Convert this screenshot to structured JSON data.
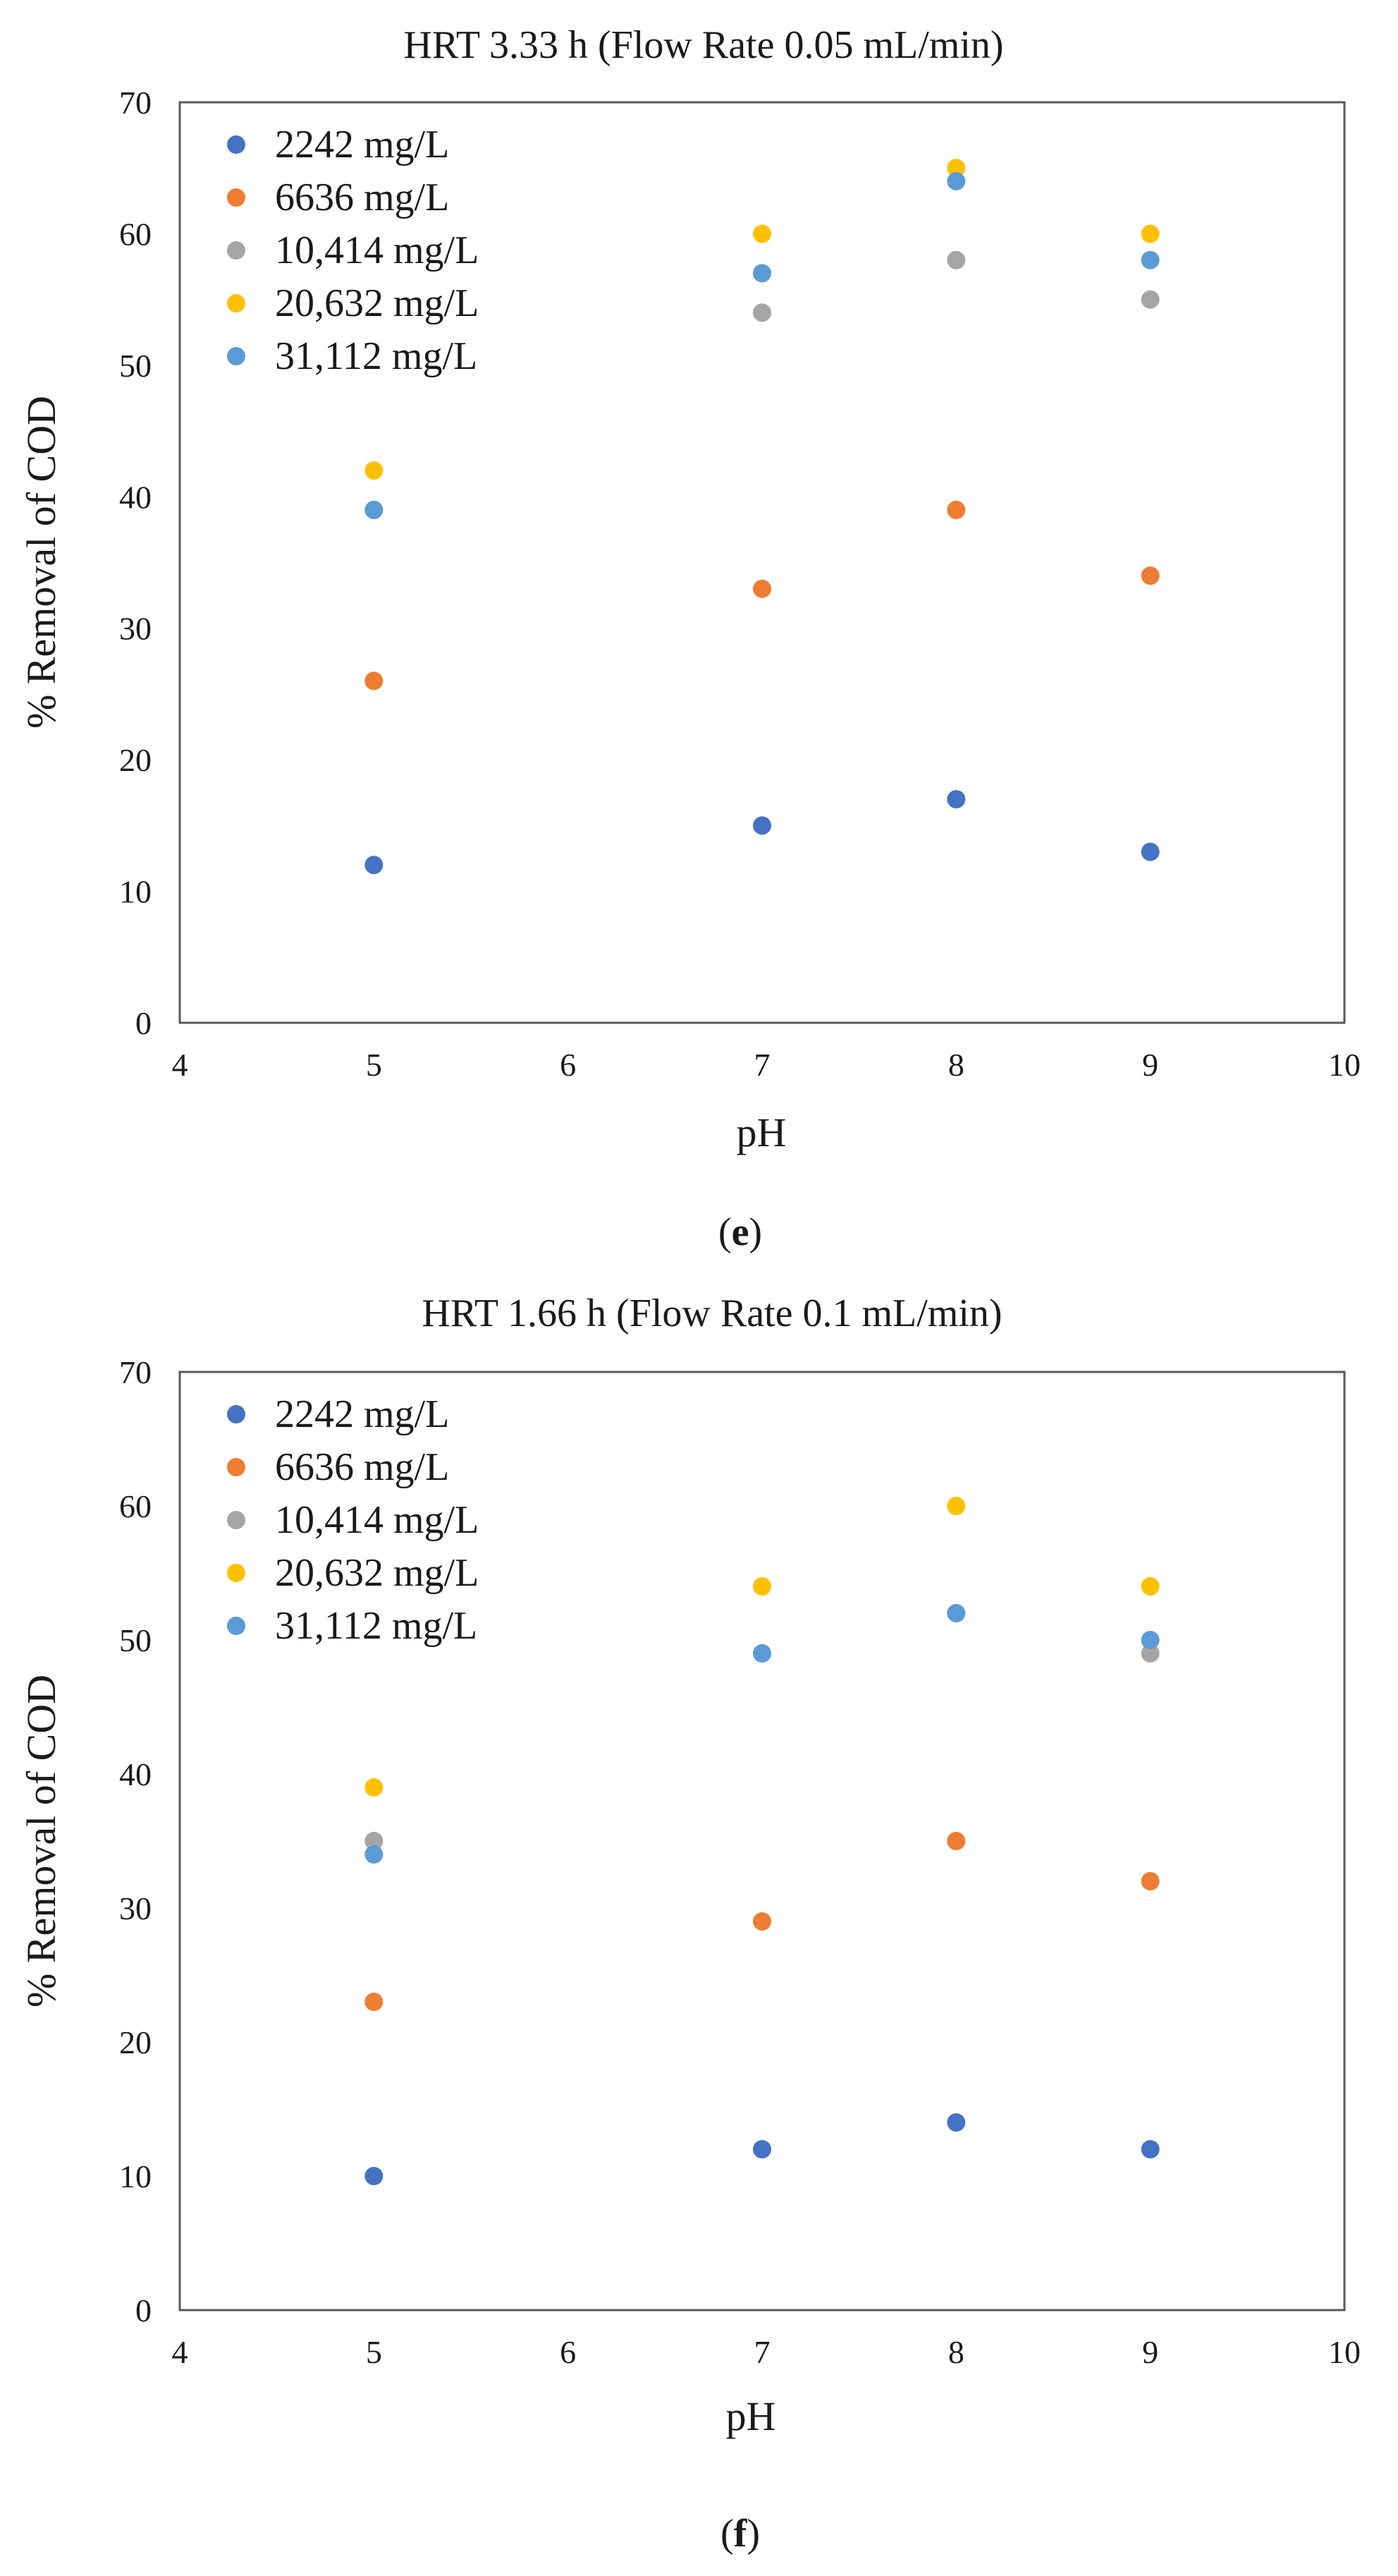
{
  "colors": {
    "series_2242": "#4472c4",
    "series_6636": "#ed7d31",
    "series_10414": "#a5a5a5",
    "series_20632": "#ffc000",
    "series_31112": "#5b9bd5",
    "axis": "#595959"
  },
  "chart_data": [
    {
      "type": "scatter",
      "title": "HRT 3.33 h (Flow Rate 0.05 mL/min)",
      "caption": "e",
      "xlabel": "pH",
      "ylabel": "% Removal of COD",
      "xlim": [
        4,
        10
      ],
      "ylim": [
        0,
        70
      ],
      "xticks": [
        "4",
        "5",
        "6",
        "7",
        "8",
        "9",
        "10"
      ],
      "yticks": [
        "0",
        "10",
        "20",
        "30",
        "40",
        "50",
        "60",
        "70"
      ],
      "grid": false,
      "legend_position": "top-left",
      "series": [
        {
          "name": "2242 mg/L",
          "color_key": "series_2242",
          "points": [
            [
              5,
              12
            ],
            [
              7,
              15
            ],
            [
              8,
              17
            ],
            [
              9,
              13
            ]
          ]
        },
        {
          "name": "6636 mg/L",
          "color_key": "series_6636",
          "points": [
            [
              5,
              26
            ],
            [
              7,
              33
            ],
            [
              8,
              39
            ],
            [
              9,
              34
            ]
          ]
        },
        {
          "name": "10,414 mg/L",
          "color_key": "series_10414",
          "points": [
            [
              5,
              39
            ],
            [
              7,
              54
            ],
            [
              8,
              58
            ],
            [
              9,
              55
            ]
          ]
        },
        {
          "name": "20,632 mg/L",
          "color_key": "series_20632",
          "points": [
            [
              5,
              42
            ],
            [
              7,
              60
            ],
            [
              8,
              65
            ],
            [
              9,
              60
            ]
          ]
        },
        {
          "name": "31,112 mg/L",
          "color_key": "series_31112",
          "points": [
            [
              5,
              39
            ],
            [
              7,
              57
            ],
            [
              8,
              64
            ],
            [
              9,
              58
            ]
          ]
        }
      ]
    },
    {
      "type": "scatter",
      "title": "HRT 1.66 h (Flow Rate 0.1 mL/min)",
      "caption": "f",
      "xlabel": "pH",
      "ylabel": "% Removal of COD",
      "xlim": [
        4,
        10
      ],
      "ylim": [
        0,
        70
      ],
      "xticks": [
        "4",
        "5",
        "6",
        "7",
        "8",
        "9",
        "10"
      ],
      "yticks": [
        "0",
        "10",
        "20",
        "30",
        "40",
        "50",
        "60",
        "70"
      ],
      "grid": false,
      "legend_position": "top-left",
      "series": [
        {
          "name": "2242 mg/L",
          "color_key": "series_2242",
          "points": [
            [
              5,
              10
            ],
            [
              7,
              12
            ],
            [
              8,
              14
            ],
            [
              9,
              12
            ]
          ]
        },
        {
          "name": "6636 mg/L",
          "color_key": "series_6636",
          "points": [
            [
              5,
              23
            ],
            [
              7,
              29
            ],
            [
              8,
              35
            ],
            [
              9,
              32
            ]
          ]
        },
        {
          "name": "10,414 mg/L",
          "color_key": "series_10414",
          "points": [
            [
              5,
              35
            ],
            [
              7,
              49
            ],
            [
              8,
              52
            ],
            [
              9,
              49
            ]
          ]
        },
        {
          "name": "20,632 mg/L",
          "color_key": "series_20632",
          "points": [
            [
              5,
              39
            ],
            [
              7,
              54
            ],
            [
              8,
              60
            ],
            [
              9,
              54
            ]
          ]
        },
        {
          "name": "31,112 mg/L",
          "color_key": "series_31112",
          "points": [
            [
              5,
              34
            ],
            [
              7,
              49
            ],
            [
              8,
              52
            ],
            [
              9,
              50
            ]
          ]
        }
      ]
    }
  ]
}
